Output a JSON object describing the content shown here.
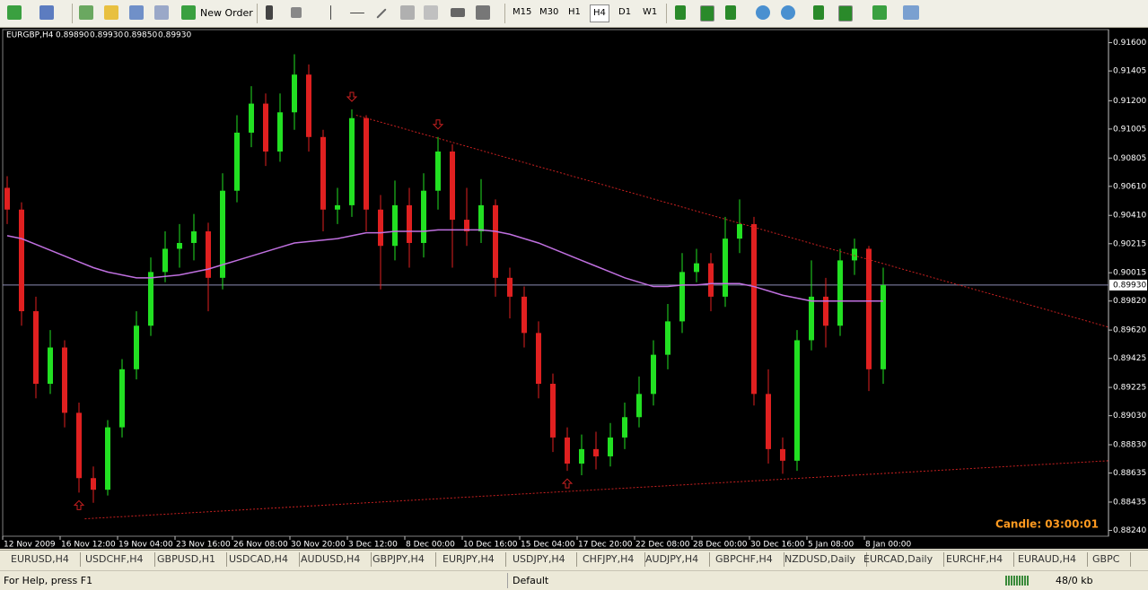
{
  "toolbar": {
    "new_order": "New Order",
    "timeframes": [
      "M15",
      "M30",
      "H1",
      "H4",
      "D1",
      "W1"
    ]
  },
  "chart_data": {
    "type": "candlestick",
    "title": "EURGBP,H4",
    "header_ohlc": [
      {
        "value": 0.8989,
        "label": "0.89890"
      },
      {
        "value": 0.8993,
        "label": "0.89930"
      },
      {
        "value": 0.8985,
        "label": "0.89850"
      },
      {
        "value": 0.8993,
        "label": "0.89930"
      }
    ],
    "x_labels": [
      "12 Nov 2009",
      "16 Nov 12:00",
      "19 Nov 04:00",
      "23 Nov 16:00",
      "26 Nov 08:00",
      "30 Nov 20:00",
      "3 Dec 12:00",
      "8 Dec 00:00",
      "10 Dec 16:00",
      "15 Dec 04:00",
      "17 Dec 20:00",
      "22 Dec 08:00",
      "28 Dec 00:00",
      "30 Dec 16:00",
      "5 Jan 08:00",
      "8 Jan 00:00"
    ],
    "open": [
      0.906,
      0.9045,
      0.8975,
      0.8925,
      0.895,
      0.8905,
      0.886,
      0.8852,
      0.8895,
      0.8935,
      0.8965,
      0.9002,
      0.9018,
      0.9022,
      0.903,
      0.8998,
      0.9058,
      0.9098,
      0.9118,
      0.9085,
      0.9112,
      0.9138,
      0.9095,
      0.9045,
      0.9048,
      0.9108,
      0.9045,
      0.902,
      0.9048,
      0.9022,
      0.9058,
      0.9085,
      0.9038,
      0.903,
      0.9048,
      0.8998,
      0.8985,
      0.896,
      0.8925,
      0.8888,
      0.887,
      0.888,
      0.8875,
      0.8888,
      0.8902,
      0.8918,
      0.8945,
      0.8968,
      0.9002,
      0.9008,
      0.8985,
      0.9025,
      0.9035,
      0.8918,
      0.888,
      0.8872,
      0.8955,
      0.8985,
      0.8965,
      0.901,
      0.9018,
      0.8935
    ],
    "high": [
      0.9068,
      0.905,
      0.8985,
      0.8962,
      0.8955,
      0.8912,
      0.8868,
      0.89,
      0.8942,
      0.8975,
      0.9012,
      0.903,
      0.9035,
      0.9042,
      0.9036,
      0.907,
      0.911,
      0.913,
      0.9125,
      0.9125,
      0.9152,
      0.9145,
      0.91,
      0.906,
      0.9114,
      0.911,
      0.9055,
      0.9065,
      0.906,
      0.907,
      0.9095,
      0.909,
      0.906,
      0.9066,
      0.9052,
      0.9005,
      0.8992,
      0.8968,
      0.8932,
      0.8895,
      0.889,
      0.8892,
      0.8898,
      0.8912,
      0.893,
      0.8955,
      0.898,
      0.9015,
      0.9018,
      0.9015,
      0.904,
      0.9052,
      0.904,
      0.8935,
      0.8888,
      0.8962,
      0.901,
      0.8998,
      0.9018,
      0.9025,
      0.902,
      0.9005
    ],
    "low": [
      0.9035,
      0.8965,
      0.8915,
      0.8918,
      0.8895,
      0.885,
      0.8843,
      0.8848,
      0.8888,
      0.8928,
      0.8958,
      0.8995,
      0.9005,
      0.901,
      0.8975,
      0.899,
      0.905,
      0.9088,
      0.9075,
      0.9078,
      0.91,
      0.9085,
      0.903,
      0.9035,
      0.904,
      0.903,
      0.899,
      0.901,
      0.9005,
      0.9012,
      0.9045,
      0.9005,
      0.902,
      0.9022,
      0.8985,
      0.897,
      0.895,
      0.8915,
      0.8878,
      0.8865,
      0.8862,
      0.8866,
      0.8868,
      0.888,
      0.8895,
      0.891,
      0.8935,
      0.896,
      0.8995,
      0.8975,
      0.8978,
      0.9015,
      0.891,
      0.887,
      0.8863,
      0.8865,
      0.8948,
      0.895,
      0.8958,
      0.9,
      0.892,
      0.8925
    ],
    "close": [
      0.9045,
      0.8975,
      0.8925,
      0.895,
      0.8905,
      0.886,
      0.8852,
      0.8895,
      0.8935,
      0.8965,
      0.9002,
      0.9018,
      0.9022,
      0.903,
      0.8998,
      0.9058,
      0.9098,
      0.9118,
      0.9085,
      0.9112,
      0.9138,
      0.9095,
      0.9045,
      0.9048,
      0.9108,
      0.9045,
      0.902,
      0.9048,
      0.9022,
      0.9058,
      0.9085,
      0.9038,
      0.903,
      0.9048,
      0.8998,
      0.8985,
      0.896,
      0.8925,
      0.8888,
      0.887,
      0.888,
      0.8875,
      0.8888,
      0.8902,
      0.8918,
      0.8945,
      0.8968,
      0.9002,
      0.9008,
      0.8985,
      0.9025,
      0.9035,
      0.8918,
      0.888,
      0.8872,
      0.8955,
      0.8985,
      0.8965,
      0.901,
      0.9018,
      0.8935,
      0.8993
    ],
    "moving_average": {
      "color": "#c070e0",
      "values": [
        0.9027,
        0.9025,
        0.9021,
        0.9017,
        0.9013,
        0.9009,
        0.9005,
        0.9002,
        0.9,
        0.8998,
        0.8998,
        0.8999,
        0.9,
        0.9002,
        0.9004,
        0.9007,
        0.901,
        0.9013,
        0.9016,
        0.9019,
        0.9022,
        0.9023,
        0.9024,
        0.9025,
        0.9027,
        0.9029,
        0.9029,
        0.903,
        0.903,
        0.903,
        0.9031,
        0.9031,
        0.9031,
        0.9031,
        0.903,
        0.9028,
        0.9025,
        0.9022,
        0.9018,
        0.9014,
        0.901,
        0.9006,
        0.9002,
        0.8998,
        0.8995,
        0.8992,
        0.8992,
        0.8993,
        0.8993,
        0.8994,
        0.8994,
        0.8994,
        0.8992,
        0.8989,
        0.8986,
        0.8984,
        0.8982,
        0.8982,
        0.8982,
        0.8982,
        0.8982,
        0.8982
      ]
    },
    "trendlines": [
      {
        "x": [
          24.3,
          76.7
        ],
        "y": [
          0.911,
          0.8964
        ]
      },
      {
        "x": [
          5.4,
          76.7
        ],
        "y": [
          0.8832,
          0.8872
        ]
      }
    ],
    "trendline_color": "#c82020",
    "down_arrows": [
      24,
      30
    ],
    "up_arrows": [
      5,
      39
    ],
    "bull_color": "#22e022",
    "bear_color": "#e02020",
    "current_price": {
      "value": 0.8993,
      "label": "0.89930"
    },
    "candle_timer": "Candle:  03:00:01",
    "ylim": [
      0.882,
      0.9169
    ],
    "yticks": [
      {
        "value": 0.916,
        "label": "0.91600"
      },
      {
        "value": 0.91405,
        "label": "0.91405"
      },
      {
        "value": 0.912,
        "label": "0.91200"
      },
      {
        "value": 0.91005,
        "label": "0.91005"
      },
      {
        "value": 0.90805,
        "label": "0.90805"
      },
      {
        "value": 0.9061,
        "label": "0.90610"
      },
      {
        "value": 0.9041,
        "label": "0.90410"
      },
      {
        "value": 0.90215,
        "label": "0.90215"
      },
      {
        "value": 0.90015,
        "label": "0.90015"
      },
      {
        "value": 0.8982,
        "label": "0.89820"
      },
      {
        "value": 0.8962,
        "label": "0.89620"
      },
      {
        "value": 0.89425,
        "label": "0.89425"
      },
      {
        "value": 0.89225,
        "label": "0.89225"
      },
      {
        "value": 0.8903,
        "label": "0.89030"
      },
      {
        "value": 0.8883,
        "label": "0.88830"
      },
      {
        "value": 0.88635,
        "label": "0.88635"
      },
      {
        "value": 0.88435,
        "label": "0.88435"
      },
      {
        "value": 0.8824,
        "label": "0.88240"
      }
    ],
    "grid": false
  },
  "tabs": [
    "EURUSD,H4",
    "USDCHF,H4",
    "GBPUSD,H1",
    "USDCAD,H4",
    "AUDUSD,H4",
    "GBPJPY,H4",
    "EURJPY,H4",
    "USDJPY,H4",
    "CHFJPY,H4",
    "AUDJPY,H4",
    "GBPCHF,H4",
    "NZDUSD,Daily",
    "EURCAD,Daily",
    "EURCHF,H4",
    "EURAUD,H4",
    "GBPC"
  ],
  "status": {
    "help": "For Help, press F1",
    "profile": "Default",
    "traffic": "48/0 kb"
  }
}
